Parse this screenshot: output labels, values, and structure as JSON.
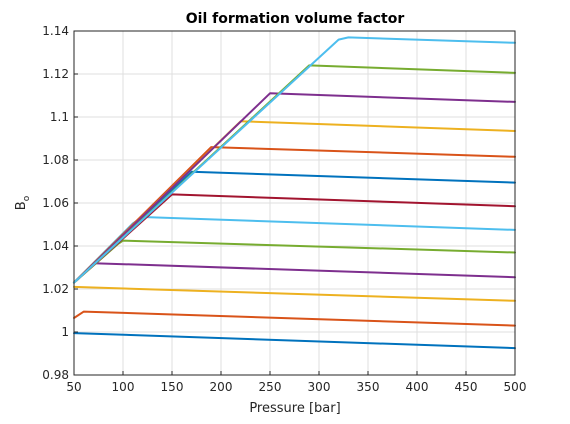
{
  "chart_data": {
    "type": "line",
    "title": "Oil formation volume factor",
    "xlabel": "Pressure [bar]",
    "ylabel_main": "B",
    "ylabel_sub": "o",
    "xlim": [
      50,
      500
    ],
    "ylim": [
      0.98,
      1.14
    ],
    "grid": true,
    "legend": "none",
    "x_ticks": [
      50,
      100,
      150,
      200,
      250,
      300,
      350,
      400,
      450,
      500
    ],
    "y_ticks": [
      0.98,
      1,
      1.02,
      1.04,
      1.06,
      1.08,
      1.1,
      1.12,
      1.14
    ],
    "series": [
      {
        "color": "#0072BD",
        "x": [
          50,
          500
        ],
        "y": [
          0.9995,
          0.9925
        ]
      },
      {
        "color": "#D95319",
        "x": [
          50,
          60,
          500
        ],
        "y": [
          1.0065,
          1.0095,
          1.003
        ]
      },
      {
        "color": "#EDB120",
        "x": [
          50,
          500
        ],
        "y": [
          1.021,
          1.0145
        ]
      },
      {
        "color": "#7E2F8E",
        "x": [
          50,
          70,
          500
        ],
        "y": [
          1.023,
          1.032,
          1.0255
        ]
      },
      {
        "color": "#77AC30",
        "x": [
          50,
          95,
          100,
          500
        ],
        "y": [
          1.023,
          1.041,
          1.0425,
          1.037
        ]
      },
      {
        "color": "#4DBEEE",
        "x": [
          50,
          110,
          120,
          500
        ],
        "y": [
          1.023,
          1.0505,
          1.0535,
          1.0475
        ]
      },
      {
        "color": "#A2142F",
        "x": [
          50,
          150,
          500
        ],
        "y": [
          1.023,
          1.064,
          1.0585
        ]
      },
      {
        "color": "#0072BD",
        "x": [
          50,
          170,
          500
        ],
        "y": [
          1.023,
          1.0745,
          1.0695
        ]
      },
      {
        "color": "#D95319",
        "x": [
          50,
          190,
          500
        ],
        "y": [
          1.023,
          1.086,
          1.0815
        ]
      },
      {
        "color": "#EDB120",
        "x": [
          50,
          220,
          500
        ],
        "y": [
          1.023,
          1.098,
          1.0935
        ]
      },
      {
        "color": "#7E2F8E",
        "x": [
          50,
          250,
          500
        ],
        "y": [
          1.023,
          1.111,
          1.107
        ]
      },
      {
        "color": "#77AC30",
        "x": [
          50,
          290,
          500
        ],
        "y": [
          1.023,
          1.124,
          1.1205
        ]
      },
      {
        "color": "#4DBEEE",
        "x": [
          50,
          320,
          330,
          500
        ],
        "y": [
          1.023,
          1.136,
          1.137,
          1.1345
        ]
      }
    ]
  }
}
